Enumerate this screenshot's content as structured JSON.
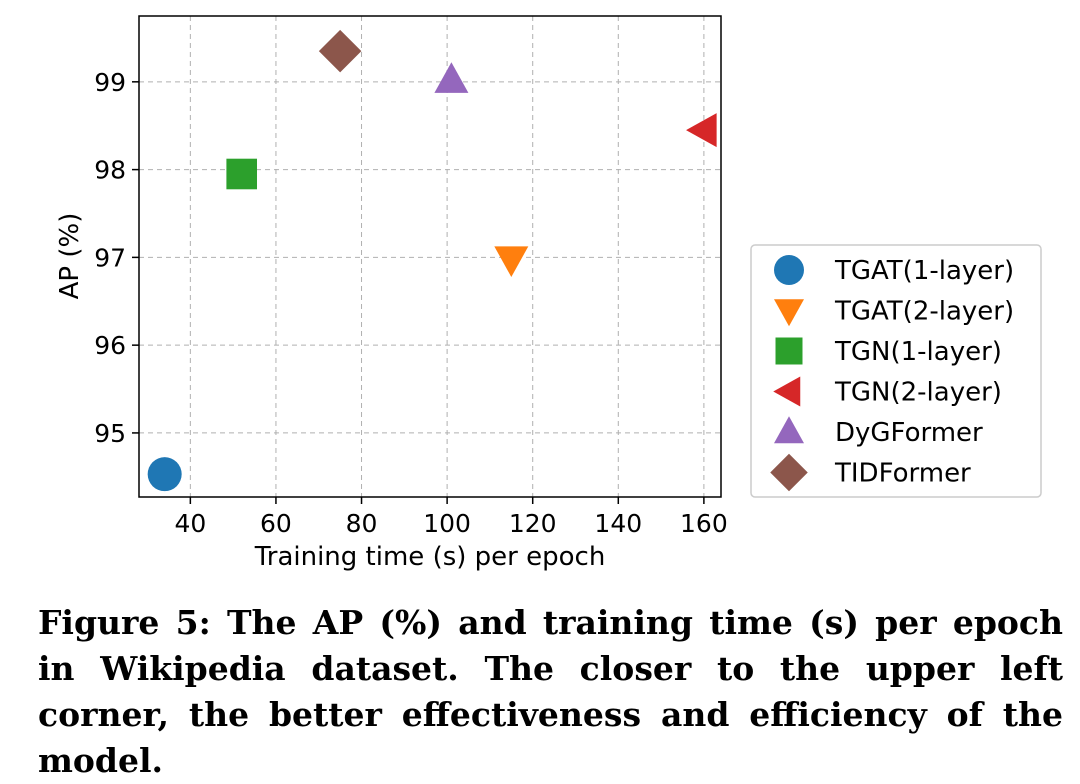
{
  "chart_data": {
    "type": "scatter",
    "title": "",
    "xlabel": "Training time (s) per epoch",
    "ylabel": "AP (%)",
    "xlim": [
      28,
      164
    ],
    "ylim": [
      94.27,
      99.75
    ],
    "xticks": [
      40,
      60,
      80,
      100,
      120,
      140,
      160
    ],
    "yticks": [
      95,
      96,
      97,
      98,
      99
    ],
    "grid": true,
    "legend_position": "outside-right",
    "series": [
      {
        "name": "TGAT(1-layer)",
        "x": 34,
        "y": 94.53,
        "marker": "circle",
        "color": "#1f77b4"
      },
      {
        "name": "TGAT(2-layer)",
        "x": 115,
        "y": 96.98,
        "marker": "triangle-down",
        "color": "#ff7f0e"
      },
      {
        "name": "TGN(1-layer)",
        "x": 52,
        "y": 97.95,
        "marker": "square",
        "color": "#2ca02c"
      },
      {
        "name": "TGN(2-layer)",
        "x": 160,
        "y": 98.45,
        "marker": "triangle-left",
        "color": "#d62728"
      },
      {
        "name": "DyGFormer",
        "x": 101,
        "y": 99.02,
        "marker": "triangle-up",
        "color": "#9467bd"
      },
      {
        "name": "TIDFormer",
        "x": 75,
        "y": 99.35,
        "marker": "diamond",
        "color": "#8c564b"
      }
    ]
  },
  "caption": "Figure 5: The AP (%) and training time (s) per epoch in Wikipedia dataset. The closer to the upper left corner, the better effectiveness and efficiency of the model."
}
